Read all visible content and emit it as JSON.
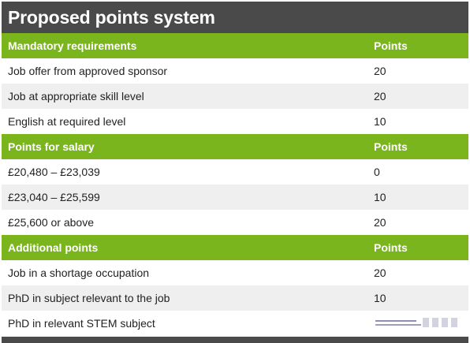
{
  "title": "Proposed points system",
  "sections": [
    {
      "heading": "Mandatory requirements",
      "points_header": "Points",
      "rows": [
        {
          "label": "Job offer from approved sponsor",
          "points": "20"
        },
        {
          "label": "Job at appropriate skill level",
          "points": "20"
        },
        {
          "label": "English at required level",
          "points": "10"
        }
      ]
    },
    {
      "heading": "Points for salary",
      "points_header": "Points",
      "rows": [
        {
          "label": "£20,480 – £23,039",
          "points": "0"
        },
        {
          "label": "£23,040 – £25,599",
          "points": "10"
        },
        {
          "label": "£25,600 or above",
          "points": "20"
        }
      ]
    },
    {
      "heading": "Additional points",
      "points_header": "Points",
      "rows": [
        {
          "label": "Job in a shortage occupation",
          "points": "20"
        },
        {
          "label": "PhD in subject relevant to the job",
          "points": "10"
        },
        {
          "label": "PhD in relevant STEM subject",
          "points": ""
        }
      ]
    }
  ],
  "colors": {
    "title_bg": "#4a4a4a",
    "section_bg": "#7ab51d",
    "row_alt_bg": "#efefef"
  }
}
